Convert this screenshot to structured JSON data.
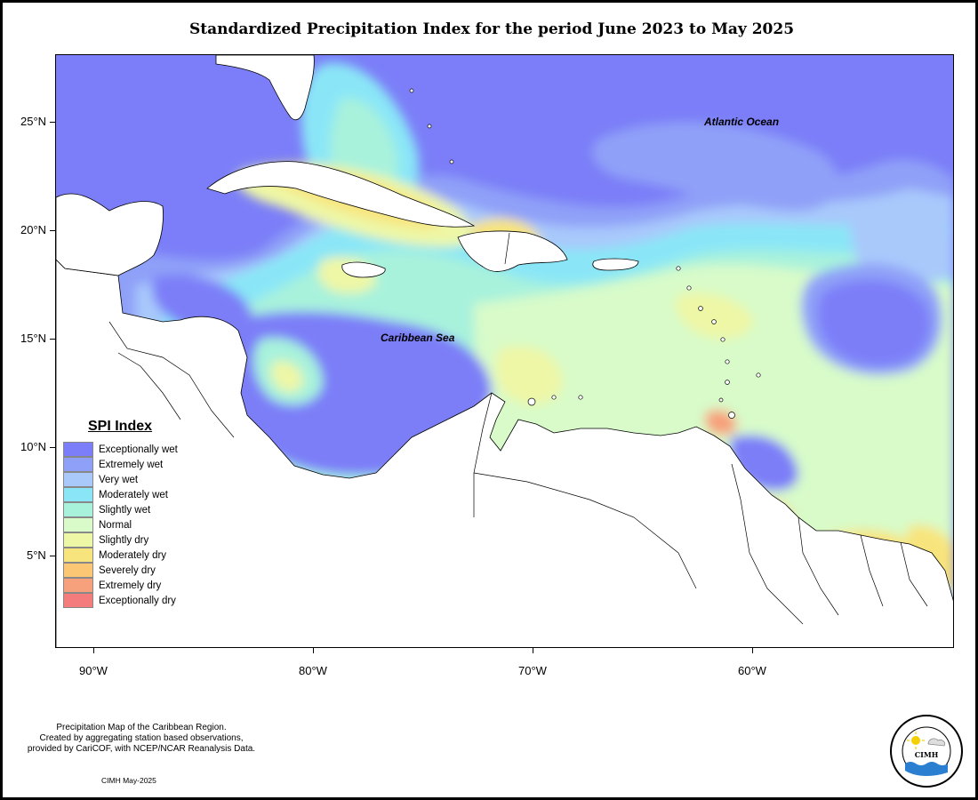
{
  "title": "Standardized Precipitation Index for the period June 2023 to May 2025",
  "ocean_labels": {
    "atlantic": "Atlantic Ocean",
    "caribbean": "Caribbean Sea"
  },
  "axes": {
    "longitude_ticks": [
      "90°W",
      "80°W",
      "70°W",
      "60°W"
    ],
    "latitude_ticks": [
      "25°N",
      "20°N",
      "15°N",
      "10°N",
      "5°N"
    ]
  },
  "legend": {
    "title": "SPI Index",
    "items": [
      {
        "label": "Exceptionally wet",
        "color": "#7b7ef8"
      },
      {
        "label": "Extremely wet",
        "color": "#8fa0f8"
      },
      {
        "label": "Very wet",
        "color": "#a9c9fb"
      },
      {
        "label": "Moderately wet",
        "color": "#8ae6f7"
      },
      {
        "label": "Slightly wet",
        "color": "#a8f2dc"
      },
      {
        "label": "Normal",
        "color": "#d8fbc9"
      },
      {
        "label": "Slightly dry",
        "color": "#eef7a6"
      },
      {
        "label": "Moderately dry",
        "color": "#f8e47c"
      },
      {
        "label": "Severely dry",
        "color": "#fbc774"
      },
      {
        "label": "Extremely dry",
        "color": "#f7a07c"
      },
      {
        "label": "Exceptionally dry",
        "color": "#f47c7c"
      }
    ]
  },
  "footnote": {
    "line1": "Precipitation Map of the Caribbean Region.",
    "line2": "Created by aggregating station based observations,",
    "line3": "provided by CariCOF, with NCEP/NCAR Reanalysis Data.",
    "date": "CIMH May-2025"
  },
  "logo": {
    "text": "CIMH",
    "ring_text": "Caribbean Institute for Meteorology and Hydrology"
  }
}
